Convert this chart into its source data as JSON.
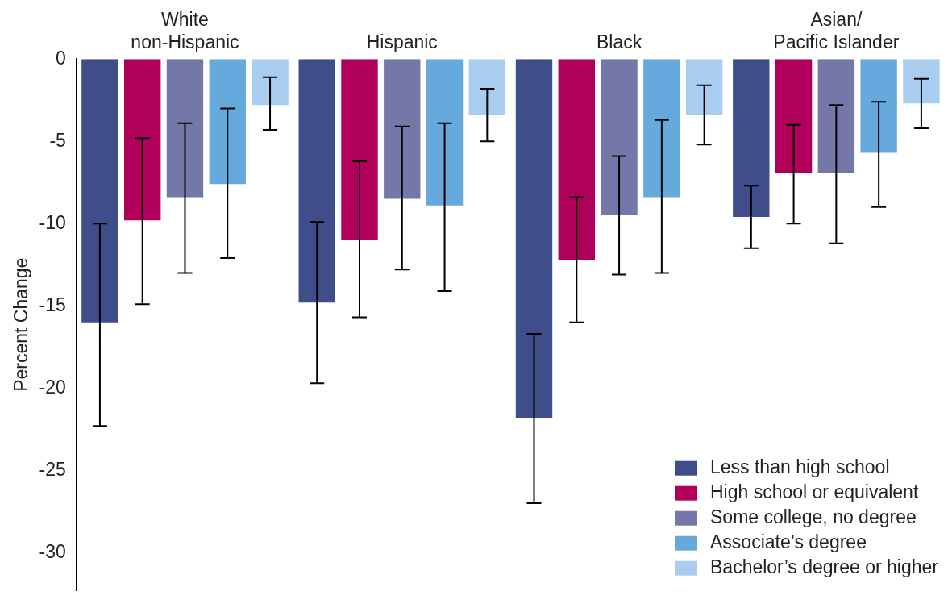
{
  "chart_data": {
    "type": "bar",
    "ylabel": "Percent Change",
    "categories": [
      "White\nnon-Hispanic",
      "Hispanic",
      "Black",
      "Asian/\nPacific Islander"
    ],
    "ylim": [
      -32.3,
      0
    ],
    "yticks": [
      0,
      -5,
      -10,
      -15,
      -20,
      -25,
      -30
    ],
    "grid": false,
    "legend": "bottom right",
    "series": [
      {
        "name": "Less than high school",
        "color": "#3f4d8a",
        "values": [
          -16.0,
          -14.8,
          -21.8,
          -9.6
        ],
        "errors": [
          [
            -22.3,
            -10.0
          ],
          [
            -19.7,
            -9.9
          ],
          [
            -27.0,
            -16.7
          ],
          [
            -11.5,
            -7.7
          ]
        ]
      },
      {
        "name": "High school or equivalent",
        "color": "#b0005a",
        "values": [
          -9.8,
          -11.0,
          -12.2,
          -6.9
        ],
        "errors": [
          [
            -14.9,
            -4.8
          ],
          [
            -15.7,
            -6.2
          ],
          [
            -16.0,
            -8.4
          ],
          [
            -10.0,
            -4.0
          ]
        ]
      },
      {
        "name": "Some college, no degree",
        "color": "#7378a8",
        "values": [
          -8.4,
          -8.5,
          -9.5,
          -6.9
        ],
        "errors": [
          [
            -13.0,
            -3.9
          ],
          [
            -12.8,
            -4.1
          ],
          [
            -13.1,
            -5.9
          ],
          [
            -11.2,
            -2.8
          ]
        ]
      },
      {
        "name": "Associate’s degree",
        "color": "#66aadd",
        "values": [
          -7.6,
          -8.9,
          -8.4,
          -5.7
        ],
        "errors": [
          [
            -12.1,
            -3.0
          ],
          [
            -14.1,
            -3.9
          ],
          [
            -13.0,
            -3.7
          ],
          [
            -9.0,
            -2.6
          ]
        ]
      },
      {
        "name": "Bachelor’s degree or higher",
        "color": "#a8cdee",
        "values": [
          -2.8,
          -3.4,
          -3.4,
          -2.7
        ],
        "errors": [
          [
            -4.3,
            -1.1
          ],
          [
            -5.0,
            -1.8
          ],
          [
            -5.2,
            -1.6
          ],
          [
            -4.2,
            -1.2
          ]
        ]
      }
    ]
  }
}
